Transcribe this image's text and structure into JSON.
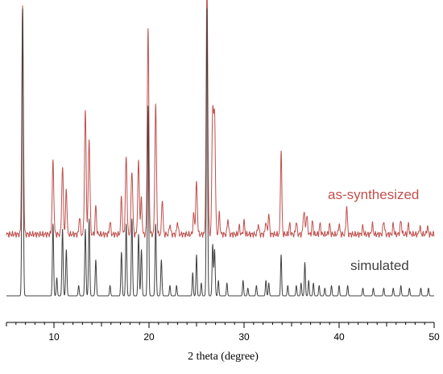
{
  "chart_data": {
    "type": "line",
    "title": "",
    "xlabel": "2 theta (degree)",
    "ylabel": "",
    "xlim": [
      5,
      50
    ],
    "x_ticks": [
      10,
      20,
      30,
      40,
      50
    ],
    "y_axis_shown": false,
    "grid": false,
    "series": [
      {
        "name": "as-synthesized",
        "color": "#c0504d",
        "baseline": 0.24,
        "noise_amp": 0.012,
        "peaks": [
          [
            6.7,
            0.88,
            0.12
          ],
          [
            9.9,
            0.28,
            0.12
          ],
          [
            10.9,
            0.26,
            0.12
          ],
          [
            11.3,
            0.18,
            0.1
          ],
          [
            12.7,
            0.07,
            0.1
          ],
          [
            13.3,
            0.48,
            0.12
          ],
          [
            13.7,
            0.37,
            0.12
          ],
          [
            14.4,
            0.11,
            0.1
          ],
          [
            15.9,
            0.05,
            0.1
          ],
          [
            17.1,
            0.15,
            0.1
          ],
          [
            17.6,
            0.3,
            0.12
          ],
          [
            18.2,
            0.25,
            0.12
          ],
          [
            18.9,
            0.28,
            0.12
          ],
          [
            19.2,
            0.14,
            0.1
          ],
          [
            19.9,
            0.8,
            0.12
          ],
          [
            20.7,
            0.5,
            0.12
          ],
          [
            21.4,
            0.14,
            0.1
          ],
          [
            22.2,
            0.04,
            0.1
          ],
          [
            23.0,
            0.05,
            0.1
          ],
          [
            24.7,
            0.08,
            0.1
          ],
          [
            25.0,
            0.2,
            0.12
          ],
          [
            26.1,
            0.98,
            0.12
          ],
          [
            26.7,
            0.48,
            0.12
          ],
          [
            26.9,
            0.45,
            0.12
          ],
          [
            27.4,
            0.08,
            0.1
          ],
          [
            28.3,
            0.06,
            0.1
          ],
          [
            29.5,
            0.03,
            0.1
          ],
          [
            30.0,
            0.05,
            0.1
          ],
          [
            31.5,
            0.04,
            0.1
          ],
          [
            32.3,
            0.05,
            0.1
          ],
          [
            32.6,
            0.08,
            0.1
          ],
          [
            33.9,
            0.33,
            0.1
          ],
          [
            34.8,
            0.04,
            0.1
          ],
          [
            35.5,
            0.05,
            0.1
          ],
          [
            36.3,
            0.09,
            0.12
          ],
          [
            36.6,
            0.07,
            0.12
          ],
          [
            37.2,
            0.05,
            0.1
          ],
          [
            38.0,
            0.04,
            0.1
          ],
          [
            39.0,
            0.04,
            0.1
          ],
          [
            40.0,
            0.04,
            0.1
          ],
          [
            40.8,
            0.11,
            0.1
          ],
          [
            42.5,
            0.03,
            0.1
          ],
          [
            43.5,
            0.04,
            0.1
          ],
          [
            44.7,
            0.05,
            0.12
          ],
          [
            45.7,
            0.04,
            0.1
          ],
          [
            46.5,
            0.05,
            0.12
          ],
          [
            47.3,
            0.04,
            0.1
          ],
          [
            48.5,
            0.03,
            0.1
          ],
          [
            49.3,
            0.03,
            0.1
          ]
        ]
      },
      {
        "name": "simulated",
        "color": "#404040",
        "baseline": 0.0,
        "noise_amp": 0.0,
        "peaks": [
          [
            6.7,
            1.12,
            0.1
          ],
          [
            9.9,
            0.28,
            0.09
          ],
          [
            10.3,
            0.07,
            0.08
          ],
          [
            10.9,
            0.26,
            0.09
          ],
          [
            11.3,
            0.18,
            0.09
          ],
          [
            12.6,
            0.04,
            0.08
          ],
          [
            13.3,
            0.26,
            0.09
          ],
          [
            13.7,
            0.3,
            0.09
          ],
          [
            14.4,
            0.14,
            0.09
          ],
          [
            15.9,
            0.04,
            0.08
          ],
          [
            17.1,
            0.17,
            0.09
          ],
          [
            17.6,
            0.28,
            0.09
          ],
          [
            18.2,
            0.3,
            0.09
          ],
          [
            18.9,
            0.24,
            0.09
          ],
          [
            19.2,
            0.18,
            0.09
          ],
          [
            19.9,
            0.74,
            0.09
          ],
          [
            20.7,
            0.28,
            0.09
          ],
          [
            21.3,
            0.14,
            0.09
          ],
          [
            22.2,
            0.04,
            0.08
          ],
          [
            22.9,
            0.04,
            0.08
          ],
          [
            24.6,
            0.09,
            0.08
          ],
          [
            25.0,
            0.16,
            0.08
          ],
          [
            25.5,
            0.05,
            0.08
          ],
          [
            26.1,
            1.12,
            0.09
          ],
          [
            26.7,
            0.2,
            0.09
          ],
          [
            26.9,
            0.18,
            0.09
          ],
          [
            27.3,
            0.06,
            0.08
          ],
          [
            28.2,
            0.05,
            0.08
          ],
          [
            29.9,
            0.06,
            0.08
          ],
          [
            30.4,
            0.03,
            0.08
          ],
          [
            31.3,
            0.04,
            0.08
          ],
          [
            32.3,
            0.06,
            0.08
          ],
          [
            32.6,
            0.05,
            0.08
          ],
          [
            33.9,
            0.16,
            0.08
          ],
          [
            34.6,
            0.04,
            0.08
          ],
          [
            35.5,
            0.04,
            0.08
          ],
          [
            36.0,
            0.05,
            0.08
          ],
          [
            36.4,
            0.13,
            0.08
          ],
          [
            36.8,
            0.06,
            0.08
          ],
          [
            37.3,
            0.05,
            0.08
          ],
          [
            37.9,
            0.04,
            0.08
          ],
          [
            38.5,
            0.03,
            0.08
          ],
          [
            39.2,
            0.04,
            0.08
          ],
          [
            40.0,
            0.04,
            0.08
          ],
          [
            40.9,
            0.04,
            0.08
          ],
          [
            42.5,
            0.03,
            0.08
          ],
          [
            43.6,
            0.03,
            0.08
          ],
          [
            44.7,
            0.03,
            0.08
          ],
          [
            45.7,
            0.03,
            0.08
          ],
          [
            46.5,
            0.04,
            0.08
          ],
          [
            47.4,
            0.03,
            0.08
          ],
          [
            48.6,
            0.03,
            0.08
          ],
          [
            49.4,
            0.03,
            0.08
          ]
        ]
      }
    ]
  }
}
